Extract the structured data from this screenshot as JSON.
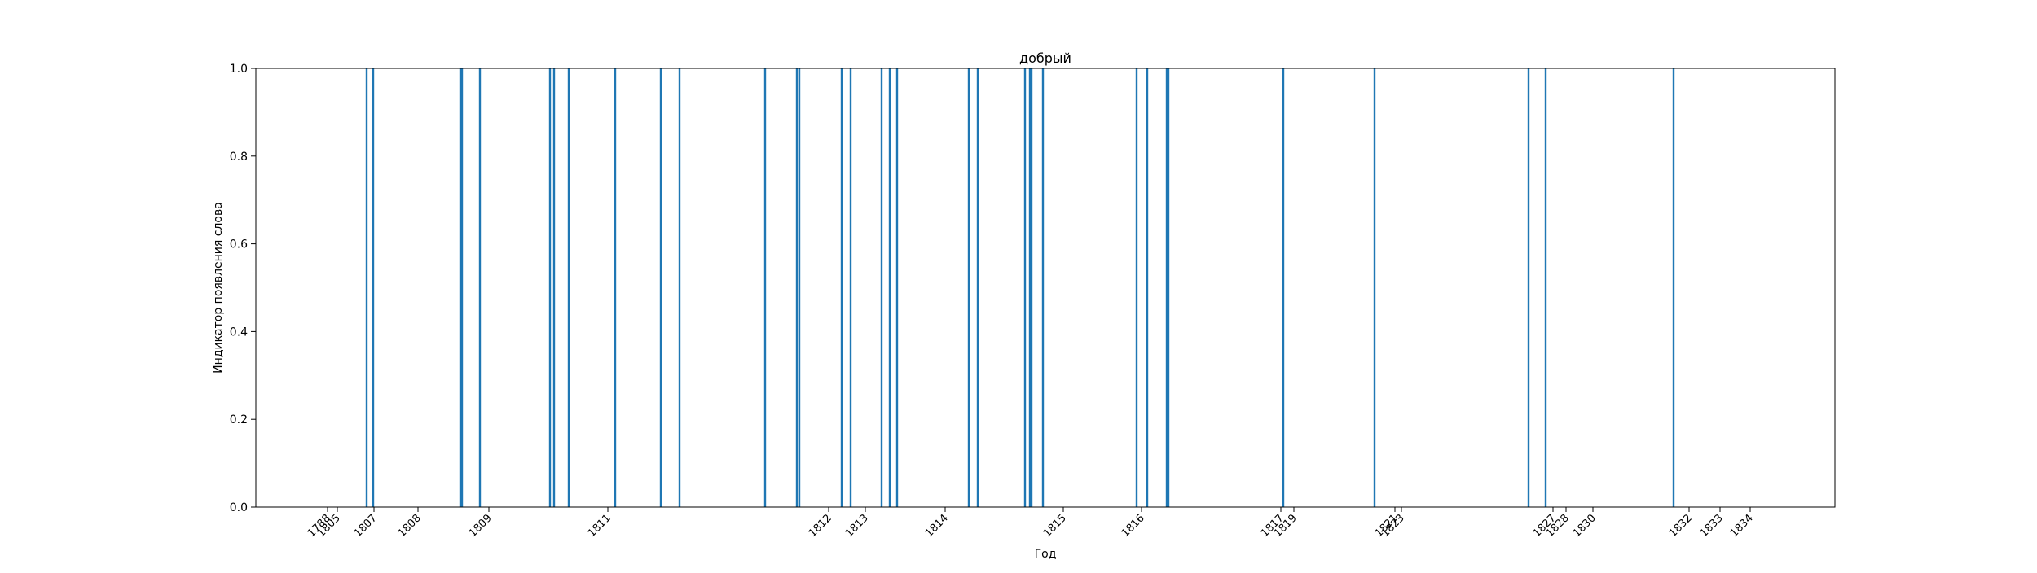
{
  "chart_data": {
    "type": "bar",
    "title": "добрый",
    "xlabel": "Год",
    "ylabel": "Индикатор появления слова",
    "ylim": [
      0,
      1
    ],
    "yticks": [
      "0.0",
      "0.2",
      "0.4",
      "0.6",
      "0.8",
      "1.0"
    ],
    "xticks": [
      {
        "label": "1788",
        "x": 402
      },
      {
        "label": "1805",
        "x": 414
      },
      {
        "label": "1807",
        "x": 459
      },
      {
        "label": "1808",
        "x": 513
      },
      {
        "label": "1809",
        "x": 600
      },
      {
        "label": "1811",
        "x": 746
      },
      {
        "label": "1812",
        "x": 1017
      },
      {
        "label": "1813",
        "x": 1062
      },
      {
        "label": "1814",
        "x": 1160
      },
      {
        "label": "1815",
        "x": 1305
      },
      {
        "label": "1816",
        "x": 1401
      },
      {
        "label": "1817",
        "x": 1572
      },
      {
        "label": "1819",
        "x": 1588
      },
      {
        "label": "1821",
        "x": 1712
      },
      {
        "label": "1823",
        "x": 1720
      },
      {
        "label": "1827",
        "x": 1906
      },
      {
        "label": "1828",
        "x": 1922
      },
      {
        "label": "1830",
        "x": 1955
      },
      {
        "label": "1832",
        "x": 2073
      },
      {
        "label": "1833",
        "x": 2111
      },
      {
        "label": "1834",
        "x": 2148
      }
    ],
    "xlim": [
      314,
      2252
    ],
    "occurrences": [
      450,
      458,
      565,
      567,
      589,
      675,
      680,
      698,
      755,
      811,
      834,
      939,
      978,
      981,
      1033,
      1044,
      1082,
      1092,
      1101,
      1189,
      1200,
      1258,
      1264,
      1266,
      1280,
      1395,
      1408,
      1432,
      1434,
      1575,
      1687,
      1876,
      1897,
      2054
    ],
    "values": [
      1,
      1,
      1,
      1,
      1,
      1,
      1,
      1,
      1,
      1,
      1,
      1,
      1,
      1,
      1,
      1,
      1,
      1,
      1,
      1,
      1,
      1,
      1,
      1,
      1,
      1,
      1,
      1,
      1,
      1,
      1,
      1,
      1,
      1
    ],
    "series_color": "#1f77b4",
    "grid": false
  }
}
